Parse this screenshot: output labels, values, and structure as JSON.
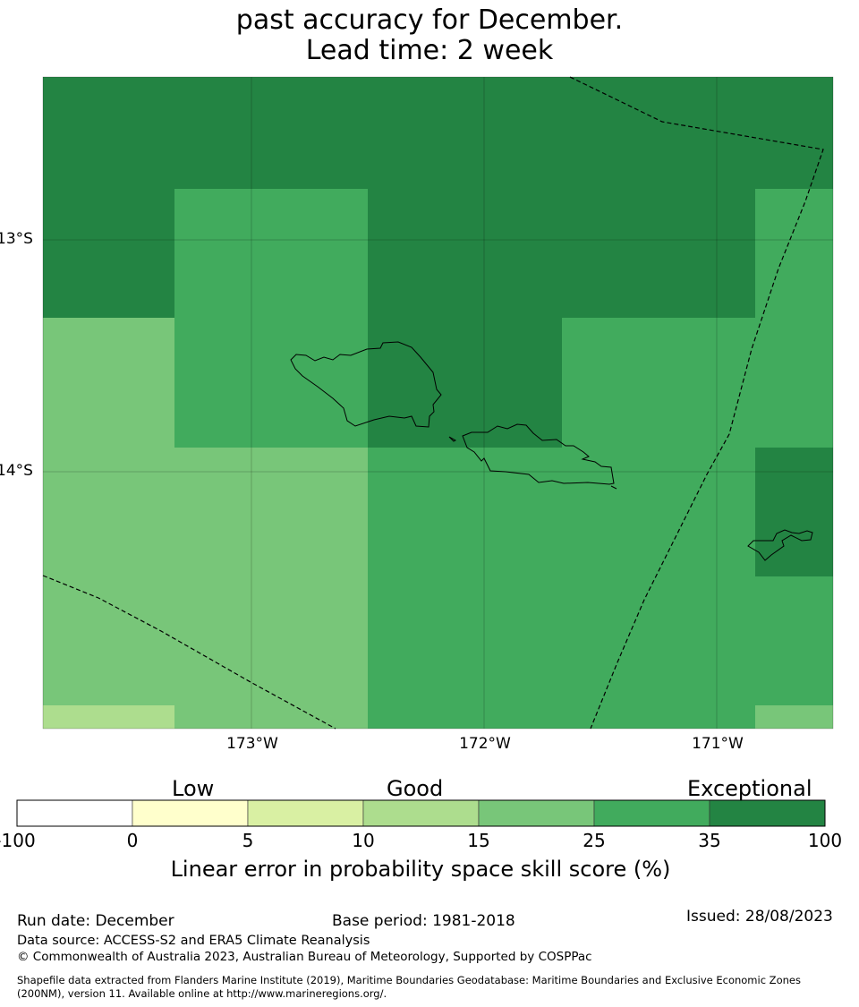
{
  "title": {
    "line1": "past accuracy for December.",
    "line2": "Lead time: 2 week"
  },
  "map": {
    "lat_labels": [
      "13°S",
      "14°S"
    ],
    "lon_labels": [
      "173°W",
      "172°W",
      "171°W"
    ],
    "level_colors": {
      "10-15": "#addd8e",
      "15-25": "#78c679",
      "25-35": "#41ab5d",
      "35-100": "#238443"
    }
  },
  "colorbar": {
    "categories": [
      "Low",
      "Good",
      "Exceptional"
    ],
    "ticks": [
      "-100",
      "0",
      "5",
      "10",
      "15",
      "25",
      "35",
      "100"
    ],
    "colors": [
      "#ffffff",
      "#ffffcc",
      "#d9f0a3",
      "#addd8e",
      "#78c679",
      "#41ab5d",
      "#238443"
    ],
    "label": "Linear error in probability space skill score (%)"
  },
  "footer": {
    "run_date": "Run date: December",
    "base_period": "Base period: 1981-2018",
    "issued": "Issued: 28/08/2023",
    "data_source": "Data source: ACCESS-S2 and ERA5 Climate Reanalysis",
    "copyright": "© Commonwealth of Australia 2023, Australian Bureau of Meteorology, Supported by COSPPac",
    "shapefile_line1": "Shapefile data extracted from Flanders Marine Institute (2019), Maritime Boundaries Geodatabase: Maritime Boundaries and Exclusive Economic Zones",
    "shapefile_line2": "(200NM), version 11. Available online at http://www.marineregions.org/."
  }
}
